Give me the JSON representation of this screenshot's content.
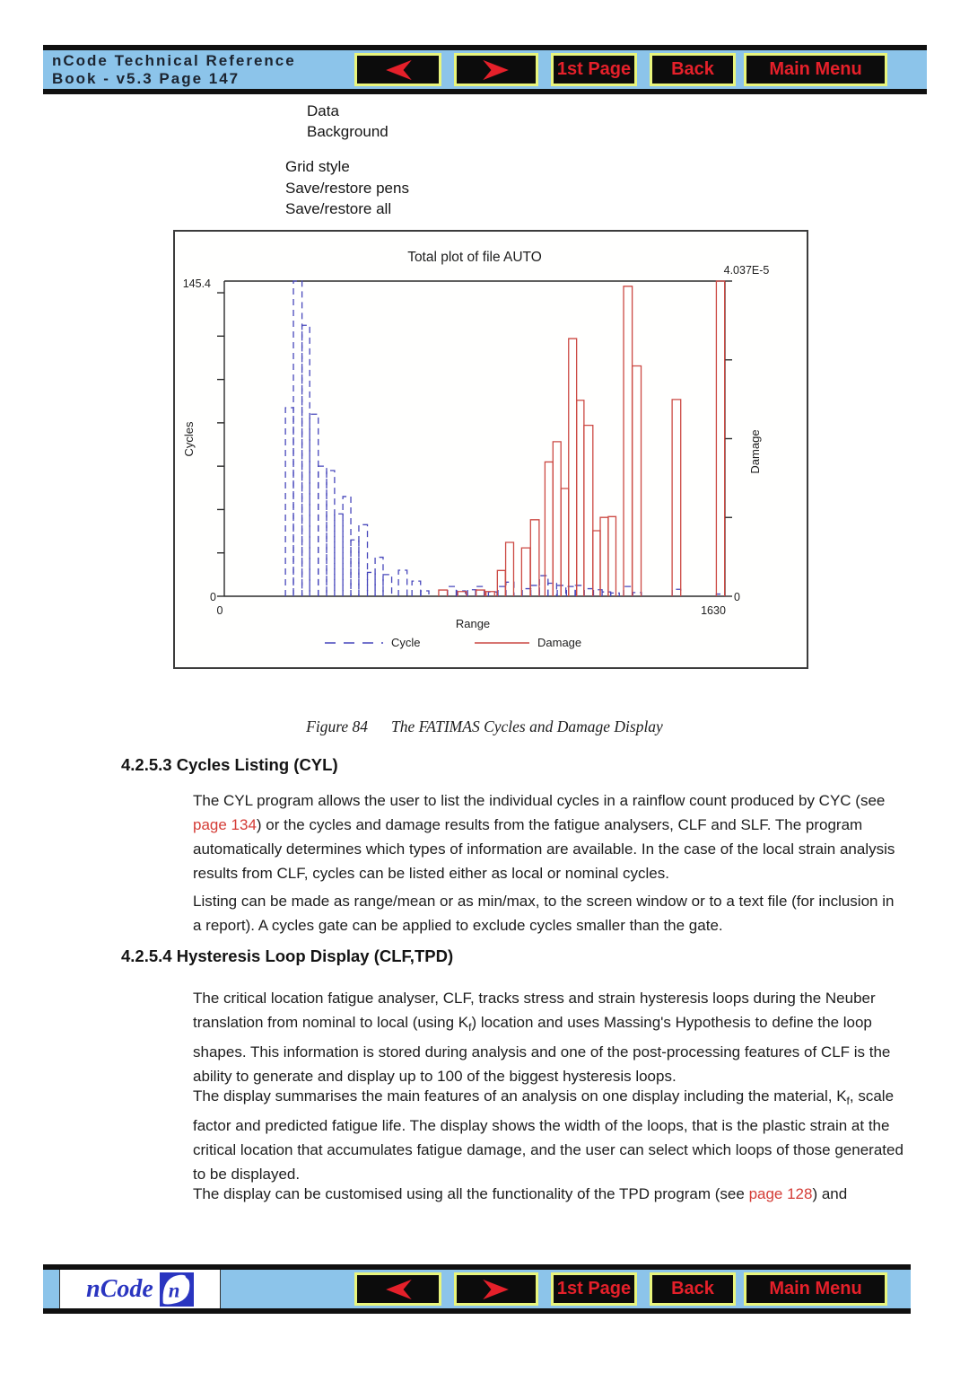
{
  "colors": {
    "bar_bg": "#8cc4ea",
    "bar_border": "#101010",
    "button_bg": "#0c0c0c",
    "button_border": "#e9f57c",
    "button_text": "#e5202a",
    "header_text": "#1c2430",
    "body_text": "#1d1d1d",
    "link_red": "#d43c36",
    "logo_blue": "#2a35c0",
    "chart_cycle_blue": "#4747bb",
    "chart_damage_red": "#cc4943"
  },
  "header": {
    "title_line1": "nCode Technical Reference",
    "title_line2": "Book - v5.3  Page 147"
  },
  "nav": {
    "first_page": "1st Page",
    "back": "Back",
    "main_menu": "Main Menu"
  },
  "footer": {
    "logo_text": "nCode",
    "logo_letter": "n"
  },
  "menu": {
    "items": [
      "Data",
      "Background",
      "Grid style",
      "Save/restore pens",
      "Save/restore all"
    ]
  },
  "figure": {
    "caption_label": "Figure 84",
    "caption_text": "The FATIMAS Cycles and Damage Display"
  },
  "body": {
    "heading1": "4.2.5.3 Cycles Listing (CYL)",
    "p1a": "The CYL program allows the user to list the individual cycles in a rainflow count produced by CYC (see ",
    "p1link": "page 134",
    "p1b": ") or the cycles and damage results from the fatigue analysers, CLF and SLF. The program automatically determines which types of information are available. In the case of the local strain analysis results from CLF, cycles can be listed either as local or nominal cycles.",
    "p2": "Listing can be made as range/mean or as min/max, to the screen window or to a text file (for inclusion in a report). A cycles gate can be applied to exclude cycles smaller than the gate.",
    "heading2": "4.2.5.4 Hysteresis Loop Display (CLF,TPD)",
    "p3a": "The critical location fatigue analyser, CLF, tracks stress and strain hysteresis loops during the Neuber translation from nominal to local (using K",
    "p3sub": "f",
    "p3b": ") location and uses Massing's Hypothesis to define the loop shapes. This information is stored during analysis and one of the post-processing features of CLF is the ability to generate and display up to 100 of the biggest hysteresis loops.",
    "p4a": "The display summarises the main features of an analysis on one display including the material, K",
    "p4sub": "f",
    "p4b": ", scale factor and predicted fatigue life. The display shows the width of the loops, that is the plastic strain at the critical location that accumulates fatigue damage, and the user can select which loops of those generated to be displayed.",
    "p5a": "The display can be customised using all the functionality of the TPD program (see ",
    "p5link": "page 128",
    "p5b": ") and"
  },
  "chart_data": {
    "type": "bar",
    "title": "Total plot of file AUTO",
    "xlabel": "Range",
    "x_range": [
      0,
      1630
    ],
    "x_tick_labels": [
      "0",
      "1630"
    ],
    "left_axis": {
      "label": "Cycles",
      "max": 145.4,
      "max_label": "145.4",
      "min_label": "0",
      "tick_step": 20
    },
    "right_axis": {
      "label": "Damage",
      "max": 4.037e-05,
      "max_label": "4.037E-5",
      "min_label": "0",
      "tick_count": 4
    },
    "legend": [
      {
        "label": "Cycle",
        "style": "dashed",
        "color": "#4747bb"
      },
      {
        "label": "Damage",
        "style": "solid",
        "color": "#cc4943"
      }
    ],
    "series": [
      {
        "name": "Cycle",
        "axis": "left",
        "style": "dashed",
        "color": "#4747bb",
        "bars": [
          [
            199,
            26,
            87
          ],
          [
            225,
            28,
            145.4
          ],
          [
            253,
            25,
            125
          ],
          [
            278,
            28,
            84
          ],
          [
            306,
            27,
            60
          ],
          [
            333,
            26,
            58
          ],
          [
            359,
            27,
            38
          ],
          [
            386,
            26,
            46
          ],
          [
            412,
            26,
            26
          ],
          [
            438,
            28,
            33
          ],
          [
            466,
            25,
            11
          ],
          [
            491,
            26,
            18
          ],
          [
            517,
            28,
            10
          ],
          [
            567,
            28,
            12
          ],
          [
            611,
            28,
            7
          ],
          [
            640,
            26,
            2.5
          ],
          [
            727,
            28,
            4.5
          ],
          [
            757,
            28,
            2.5
          ],
          [
            792,
            28,
            3
          ],
          [
            818,
            28,
            4.5
          ],
          [
            860,
            28,
            2
          ],
          [
            891,
            26,
            4.5
          ],
          [
            917,
            26,
            6.5
          ],
          [
            970,
            28,
            3.5
          ],
          [
            998,
            28,
            5
          ],
          [
            1026,
            28,
            9.5
          ],
          [
            1054,
            28,
            6
          ],
          [
            1084,
            28,
            5
          ],
          [
            1114,
            28,
            4.5
          ],
          [
            1143,
            28,
            5
          ],
          [
            1172,
            28,
            3.5
          ],
          [
            1202,
            28,
            3
          ],
          [
            1230,
            28,
            2
          ],
          [
            1258,
            28,
            1.5
          ],
          [
            1300,
            28,
            4.5
          ],
          [
            1330,
            28,
            1.7
          ],
          [
            1458,
            28,
            3.2
          ],
          [
            1602,
            27,
            1
          ]
        ]
      },
      {
        "name": "Damage",
        "axis": "right",
        "style": "solid",
        "color": "#cc4943",
        "bars": [
          [
            698,
            28,
            8e-07
          ],
          [
            760,
            28,
            6e-07
          ],
          [
            820,
            28,
            8e-07
          ],
          [
            852,
            28,
            6e-07
          ],
          [
            889,
            26,
            3.3e-06
          ],
          [
            916,
            26,
            6.9e-06
          ],
          [
            968,
            28,
            6.2e-06
          ],
          [
            997,
            28,
            9.8e-06
          ],
          [
            1044,
            26,
            1.72e-05
          ],
          [
            1070,
            26,
            1.98e-05
          ],
          [
            1096,
            25,
            1.38e-05
          ],
          [
            1121,
            26,
            3.3e-05
          ],
          [
            1147,
            24,
            2.51e-05
          ],
          [
            1171,
            29,
            2.19e-05
          ],
          [
            1200,
            24,
            8.4e-06
          ],
          [
            1224,
            26,
            1.01e-05
          ],
          [
            1250,
            25,
            1.02e-05
          ],
          [
            1300,
            28,
            3.97e-05
          ],
          [
            1328,
            29,
            2.95e-05
          ],
          [
            1458,
            28,
            2.52e-05
          ],
          [
            1602,
            27,
            4.037e-05
          ]
        ]
      }
    ]
  }
}
